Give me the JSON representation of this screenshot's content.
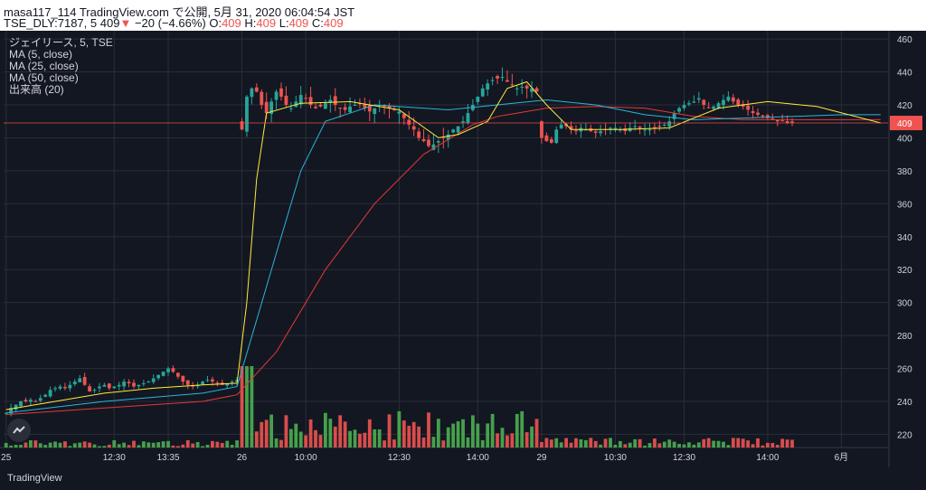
{
  "header": {
    "line1": "masa117_114 TradingView.com で公開, 5月 31, 2020 06:04:54 JST",
    "symbol": "TSE_DLY:7187, 5",
    "last": "409",
    "arrow": "▼",
    "change": "−20 (−4.66%)",
    "o_label": "O:",
    "o_val": "409",
    "h_label": "H:",
    "h_val": "409",
    "l_label": "L:",
    "l_val": "409",
    "c_label": "C:",
    "c_val": "409"
  },
  "legend": {
    "title": "ジェイリース, 5, TSE",
    "ma5": "MA (5, close)",
    "ma25": "MA (25, close)",
    "ma50": "MA (50, close)",
    "volume": "出来高 (20)"
  },
  "footer": {
    "brand": "TradingView"
  },
  "colors": {
    "background": "#131722",
    "grid": "#2a2e39",
    "axis_text": "#d1d4dc",
    "up": "#26a69a",
    "down": "#ef5350",
    "vol_up": "#4caf50",
    "vol_down": "#ef5350",
    "ma5": "#ffeb3b",
    "ma25": "#29b6d9",
    "ma50": "#e53935",
    "price_line": "#ef5350"
  },
  "chart_data": {
    "type": "candlestick",
    "yticks": [
      460,
      440,
      420,
      400,
      380,
      360,
      340,
      320,
      300,
      280,
      260,
      240,
      220
    ],
    "ylim": [
      212,
      465
    ],
    "price_label": "409",
    "last_price": 409,
    "xticks": [
      {
        "label": "25",
        "i": 0
      },
      {
        "label": "12:30",
        "i": 22
      },
      {
        "label": "13:35",
        "i": 33
      },
      {
        "label": "26",
        "i": 48
      },
      {
        "label": "10:00",
        "i": 61
      },
      {
        "label": "12:30",
        "i": 80
      },
      {
        "label": "14:00",
        "i": 96
      },
      {
        "label": "29",
        "i": 109
      },
      {
        "label": "10:30",
        "i": 124
      },
      {
        "label": "12:30",
        "i": 138
      },
      {
        "label": "14:00",
        "i": 155
      },
      {
        "label": "6月",
        "i": 170
      }
    ],
    "x_count": 180,
    "segments": [
      {
        "start": 0,
        "open": 233,
        "close": 236,
        "amp": 2,
        "vol": 3,
        "trend": [
          233,
          236,
          238,
          240,
          240,
          241,
          240,
          242,
          244,
          247,
          248,
          249,
          248,
          250,
          252,
          254,
          250,
          246,
          247,
          249,
          250,
          248,
          249,
          250,
          252,
          251,
          249,
          250,
          251,
          252,
          254,
          256,
          258,
          260,
          258,
          255,
          252,
          250,
          249,
          250,
          252,
          253,
          252,
          251,
          250,
          251,
          252,
          253
        ]
      },
      {
        "start": 48,
        "open": 410,
        "close": 415,
        "amp": 5,
        "vol": 15,
        "trend": [
          405,
          425,
          430,
          428,
          420,
          415,
          422,
          428,
          425,
          420,
          418,
          422,
          426,
          424,
          420,
          418,
          419,
          421,
          423,
          420,
          418,
          417,
          419,
          420,
          421,
          418,
          416,
          418,
          420,
          419,
          418,
          417,
          416,
          412,
          408,
          405,
          400,
          398,
          395,
          396,
          398,
          400,
          402,
          405,
          407,
          410,
          415,
          420,
          425,
          430,
          433,
          435,
          436,
          437,
          434,
          432,
          430,
          431,
          430,
          430,
          428
        ]
      },
      {
        "start": 109,
        "open": 410,
        "close": 405,
        "amp": 3,
        "vol": 4,
        "trend": [
          400,
          398,
          397,
          405,
          408,
          407,
          405,
          404,
          406,
          405,
          404,
          403,
          404,
          405,
          406,
          406,
          405,
          404,
          406,
          407,
          406,
          405,
          405,
          406,
          407,
          408,
          410,
          415,
          418,
          420,
          421,
          422,
          424,
          420,
          418,
          419,
          421,
          423,
          425,
          422,
          420,
          419,
          417,
          415,
          414,
          413,
          412,
          411,
          410,
          410,
          409,
          409
        ]
      }
    ],
    "ma5_points": [
      [
        0,
        235
      ],
      [
        10,
        240
      ],
      [
        20,
        245
      ],
      [
        30,
        248
      ],
      [
        40,
        250
      ],
      [
        47,
        251
      ],
      [
        49,
        300
      ],
      [
        51,
        375
      ],
      [
        53,
        415
      ],
      [
        60,
        421
      ],
      [
        70,
        422
      ],
      [
        80,
        417
      ],
      [
        88,
        400
      ],
      [
        92,
        402
      ],
      [
        98,
        410
      ],
      [
        102,
        430
      ],
      [
        106,
        434
      ],
      [
        110,
        420
      ],
      [
        115,
        405
      ],
      [
        125,
        405
      ],
      [
        135,
        406
      ],
      [
        145,
        418
      ],
      [
        155,
        422
      ],
      [
        165,
        419
      ],
      [
        178,
        409
      ]
    ],
    "ma25_points": [
      [
        0,
        233
      ],
      [
        20,
        240
      ],
      [
        40,
        245
      ],
      [
        47,
        249
      ],
      [
        55,
        330
      ],
      [
        60,
        380
      ],
      [
        65,
        410
      ],
      [
        75,
        420
      ],
      [
        90,
        417
      ],
      [
        100,
        420
      ],
      [
        110,
        423
      ],
      [
        120,
        420
      ],
      [
        130,
        414
      ],
      [
        140,
        411
      ],
      [
        150,
        412
      ],
      [
        160,
        413
      ],
      [
        170,
        414
      ],
      [
        178,
        414
      ]
    ],
    "ma50_points": [
      [
        0,
        232
      ],
      [
        20,
        236
      ],
      [
        40,
        240
      ],
      [
        47,
        244
      ],
      [
        55,
        270
      ],
      [
        65,
        320
      ],
      [
        75,
        360
      ],
      [
        85,
        390
      ],
      [
        95,
        408
      ],
      [
        100,
        413
      ],
      [
        110,
        418
      ],
      [
        120,
        419
      ],
      [
        130,
        418
      ],
      [
        140,
        413
      ],
      [
        150,
        411
      ],
      [
        160,
        411
      ],
      [
        170,
        411
      ],
      [
        178,
        411
      ]
    ]
  }
}
